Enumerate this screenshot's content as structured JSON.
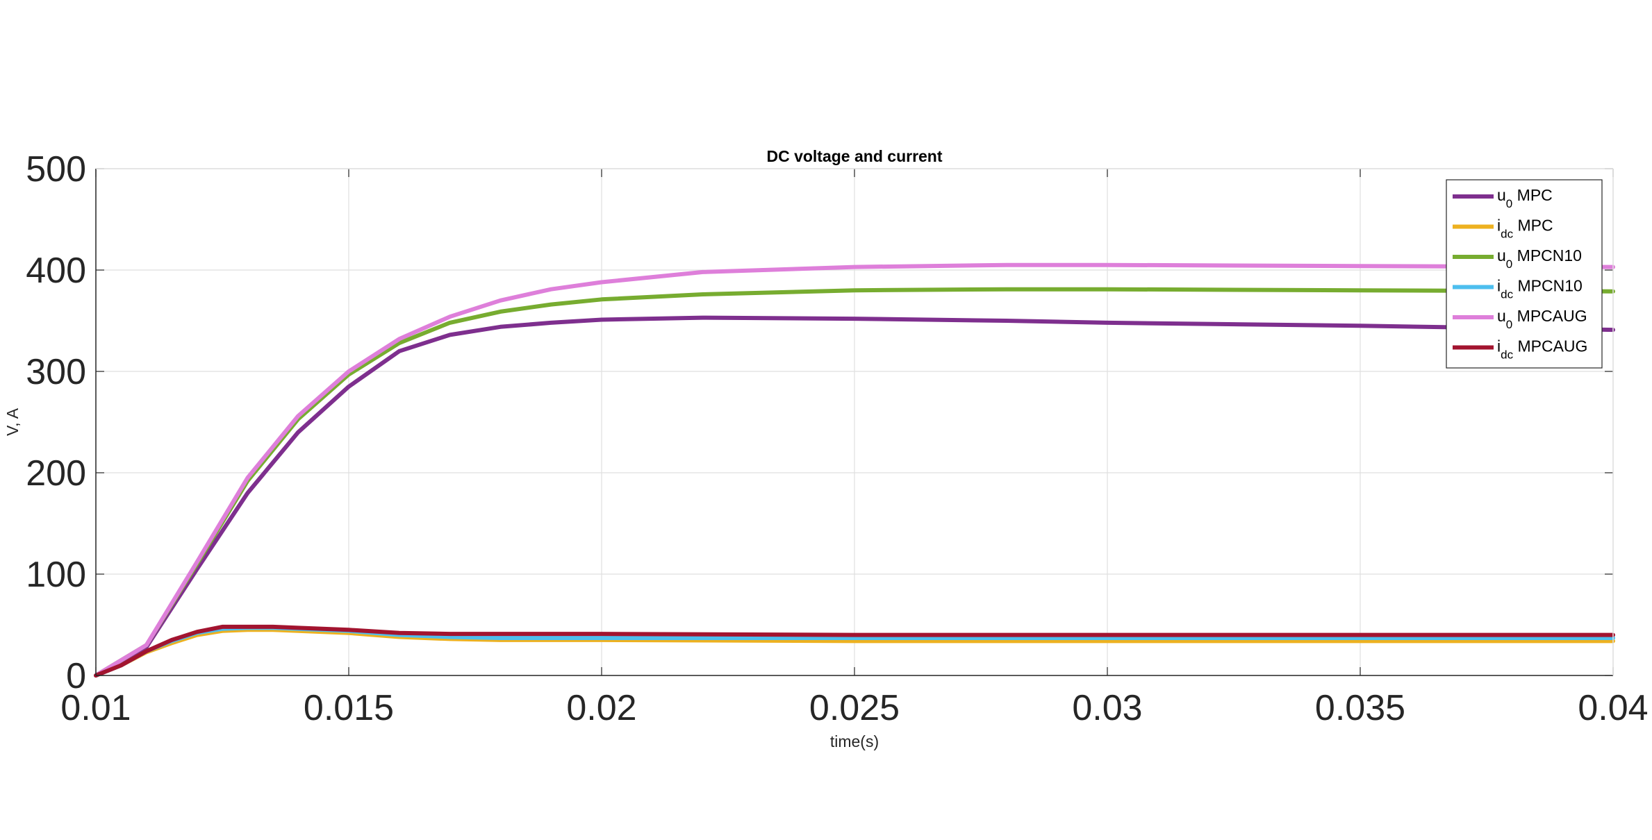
{
  "chart_data": {
    "type": "line",
    "title": "DC voltage and current",
    "xlabel": "time(s)",
    "ylabel": "V, A",
    "xlim": [
      0.01,
      0.04
    ],
    "ylim": [
      0,
      500
    ],
    "grid": true,
    "legend_position": "top-right",
    "x_ticks": [
      "0.01",
      "0.015",
      "0.02",
      "0.025",
      "0.03",
      "0.035",
      "0.04"
    ],
    "y_ticks": [
      "0",
      "100",
      "200",
      "300",
      "400",
      "500"
    ],
    "series": [
      {
        "name": "u0 MPC",
        "label_base": "u",
        "label_sub": "0",
        "label_rest": " MPC",
        "color": "#7E2F8E",
        "x": [
          0.01,
          0.011,
          0.012,
          0.013,
          0.014,
          0.015,
          0.016,
          0.017,
          0.018,
          0.019,
          0.02,
          0.022,
          0.025,
          0.028,
          0.03,
          0.035,
          0.04
        ],
        "y": [
          0,
          28,
          105,
          180,
          240,
          285,
          320,
          336,
          344,
          348,
          351,
          353,
          352,
          350,
          348,
          345,
          341
        ]
      },
      {
        "name": "idc MPC",
        "label_base": "i",
        "label_sub": "dc",
        "label_rest": " MPC",
        "color": "#EDB120",
        "x": [
          0.01,
          0.0105,
          0.011,
          0.0115,
          0.012,
          0.0125,
          0.013,
          0.0135,
          0.014,
          0.015,
          0.016,
          0.017,
          0.018,
          0.02,
          0.025,
          0.03,
          0.035,
          0.04
        ],
        "y": [
          0,
          10,
          23,
          32,
          40,
          44,
          45,
          45,
          44,
          42,
          38,
          36,
          35,
          35,
          34,
          34,
          34,
          34
        ]
      },
      {
        "name": "u0 MPCN10",
        "label_base": "u",
        "label_sub": "0",
        "label_rest": " MPCN10",
        "color": "#77AC30",
        "x": [
          0.01,
          0.011,
          0.012,
          0.013,
          0.014,
          0.015,
          0.016,
          0.017,
          0.018,
          0.019,
          0.02,
          0.022,
          0.025,
          0.028,
          0.03,
          0.035,
          0.04
        ],
        "y": [
          0,
          30,
          110,
          192,
          253,
          297,
          328,
          348,
          359,
          366,
          371,
          376,
          380,
          381,
          381,
          380,
          379
        ]
      },
      {
        "name": "idc MPCN10",
        "label_base": "i",
        "label_sub": "dc",
        "label_rest": " MPCN10",
        "color": "#4DBEEE",
        "x": [
          0.01,
          0.0105,
          0.011,
          0.0115,
          0.012,
          0.0125,
          0.013,
          0.0135,
          0.014,
          0.015,
          0.016,
          0.017,
          0.018,
          0.02,
          0.025,
          0.03,
          0.035,
          0.04
        ],
        "y": [
          0,
          10,
          24,
          34,
          42,
          46,
          47,
          47,
          46,
          44,
          40,
          38,
          37,
          37,
          37,
          37,
          37,
          37
        ]
      },
      {
        "name": "u0 MPCAUG",
        "label_base": "u",
        "label_sub": "0",
        "label_rest": " MPCAUG",
        "color": "#DE7FDA",
        "x": [
          0.01,
          0.011,
          0.012,
          0.013,
          0.014,
          0.015,
          0.016,
          0.017,
          0.018,
          0.019,
          0.02,
          0.022,
          0.025,
          0.028,
          0.03,
          0.035,
          0.04
        ],
        "y": [
          0,
          30,
          112,
          195,
          256,
          300,
          332,
          354,
          370,
          381,
          388,
          398,
          403,
          405,
          405,
          404,
          403
        ]
      },
      {
        "name": "idc MPCAUG",
        "label_base": "i",
        "label_sub": "dc",
        "label_rest": " MPCAUG",
        "color": "#A2142F",
        "x": [
          0.01,
          0.0105,
          0.011,
          0.0115,
          0.012,
          0.0125,
          0.013,
          0.0135,
          0.014,
          0.015,
          0.016,
          0.017,
          0.018,
          0.02,
          0.025,
          0.03,
          0.035,
          0.04
        ],
        "y": [
          0,
          10,
          24,
          35,
          43,
          48,
          48,
          48,
          47,
          45,
          42,
          41,
          41,
          41,
          40,
          40,
          40,
          40
        ]
      }
    ]
  }
}
